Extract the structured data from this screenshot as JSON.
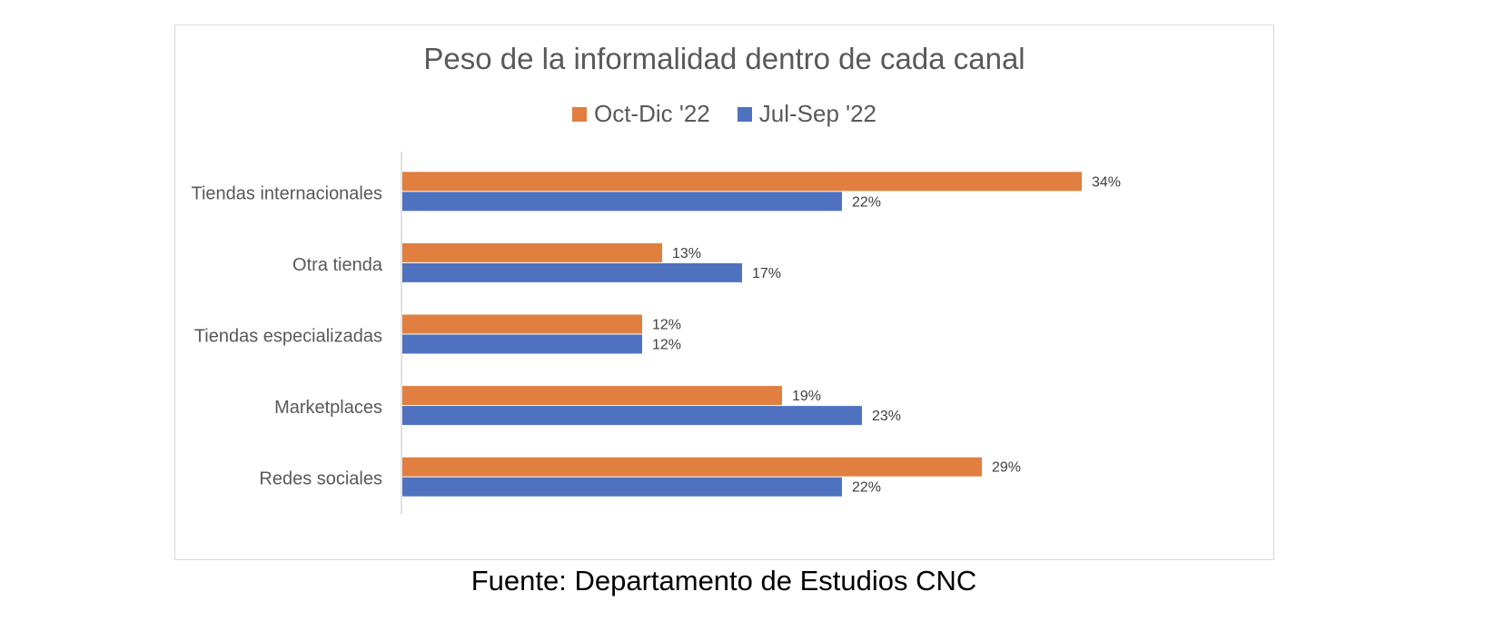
{
  "chart_data": {
    "type": "bar",
    "orientation": "horizontal",
    "title": "Peso de la informalidad dentro de cada canal",
    "categories": [
      "Tiendas internacionales",
      "Otra tienda",
      "Tiendas especializadas",
      "Marketplaces",
      "Redes sociales"
    ],
    "series": [
      {
        "name": "Oct-Dic '22",
        "color": "#E07F3F",
        "values": [
          34,
          13,
          12,
          19,
          29
        ]
      },
      {
        "name": "Jul-Sep '22",
        "color": "#4E72C0",
        "values": [
          22,
          17,
          12,
          23,
          22
        ]
      }
    ],
    "value_suffix": "%",
    "data_labels": true,
    "legend_position": "top",
    "grid": false,
    "xlim": [
      0,
      36
    ]
  },
  "source": "Fuente: Departamento de Estudios CNC"
}
